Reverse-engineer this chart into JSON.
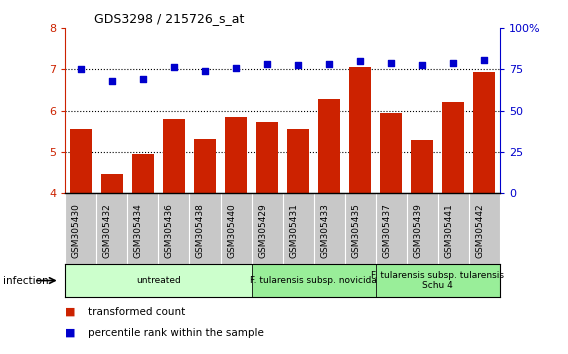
{
  "title": "GDS3298 / 215726_s_at",
  "samples": [
    "GSM305430",
    "GSM305432",
    "GSM305434",
    "GSM305436",
    "GSM305438",
    "GSM305440",
    "GSM305429",
    "GSM305431",
    "GSM305433",
    "GSM305435",
    "GSM305437",
    "GSM305439",
    "GSM305441",
    "GSM305442"
  ],
  "bar_values": [
    5.55,
    4.45,
    4.95,
    5.8,
    5.3,
    5.85,
    5.73,
    5.55,
    6.28,
    7.05,
    5.95,
    5.28,
    6.22,
    6.95
  ],
  "dot_values": [
    75.0,
    68.0,
    69.5,
    76.5,
    74.0,
    76.0,
    78.5,
    78.0,
    78.5,
    80.0,
    79.0,
    78.0,
    79.0,
    80.5
  ],
  "bar_color": "#cc2200",
  "dot_color": "#0000cc",
  "ylim_left": [
    4,
    8
  ],
  "ylim_right": [
    0,
    100
  ],
  "yticks_left": [
    4,
    5,
    6,
    7,
    8
  ],
  "yticks_right": [
    0,
    25,
    50,
    75,
    100
  ],
  "ytick_labels_right": [
    "0",
    "25",
    "50",
    "75",
    "100%"
  ],
  "groups": [
    {
      "label": "untreated",
      "start": 0,
      "end": 6,
      "color": "#ccffcc"
    },
    {
      "label": "F. tularensis subsp. novicida",
      "start": 6,
      "end": 10,
      "color": "#99ee99"
    },
    {
      "label": "F. tularensis subsp. tularensis\nSchu 4",
      "start": 10,
      "end": 14,
      "color": "#99ee99"
    }
  ],
  "infection_label": "infection",
  "legend_bar_label": "transformed count",
  "legend_dot_label": "percentile rank within the sample",
  "bar_bottom": 4.0,
  "xtick_bg_color": "#c8c8c8",
  "spine_color": "#000000"
}
